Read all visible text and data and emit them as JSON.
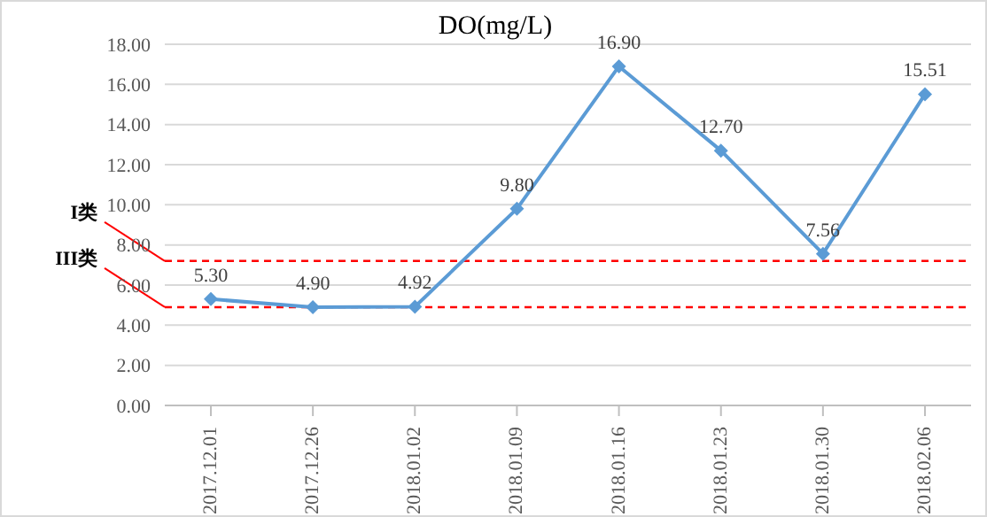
{
  "chart_data": {
    "type": "line",
    "title": "DO(mg/L)",
    "categories": [
      "2017.12.01",
      "2017.12.26",
      "2018.01.02",
      "2018.01.09",
      "2018.01.16",
      "2018.01.23",
      "2018.01.30",
      "2018.02.06"
    ],
    "series": [
      {
        "color": "#5b9bd5",
        "values": [
          5.3,
          4.9,
          4.92,
          9.8,
          16.9,
          12.7,
          7.56,
          15.51
        ],
        "value_labels": [
          "5.30",
          "4.90",
          "4.92",
          "9.80",
          "16.90",
          "12.70",
          "7.56",
          "15.51"
        ]
      }
    ],
    "ylim": [
      0,
      18
    ],
    "yticks": [
      {
        "value": 0,
        "label": "0.00"
      },
      {
        "value": 2,
        "label": "2.00"
      },
      {
        "value": 4,
        "label": "4.00"
      },
      {
        "value": 6,
        "label": "6.00"
      },
      {
        "value": 8,
        "label": "8.00"
      },
      {
        "value": 10,
        "label": "10.00"
      },
      {
        "value": 12,
        "label": "12.00"
      },
      {
        "value": 14,
        "label": "14.00"
      },
      {
        "value": 16,
        "label": "16.00"
      },
      {
        "value": 18,
        "label": "18.00"
      }
    ],
    "ref_lines": [
      {
        "axis": "y",
        "value": 7.2,
        "label": "I类",
        "color": "#ff0000",
        "line_style": "dashed"
      },
      {
        "axis": "y",
        "value": 4.9,
        "label": "III类",
        "color": "#ff0000",
        "line_style": "dashed"
      }
    ],
    "grid": "y",
    "marker": "diamond",
    "line_style": "solid",
    "legend": false
  }
}
